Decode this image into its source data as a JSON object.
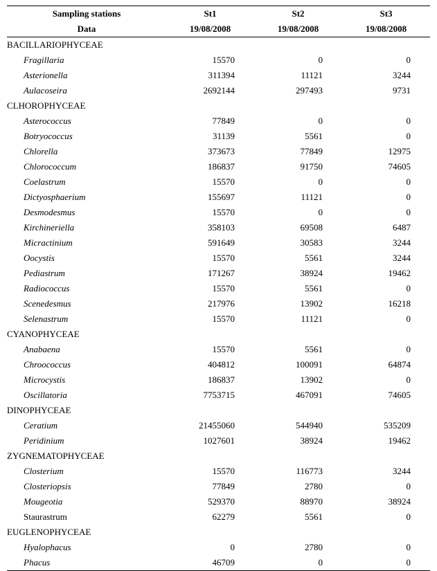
{
  "header": {
    "colStations": "Sampling stations",
    "stations": [
      "St1",
      "St2",
      "St3"
    ],
    "colData": "Data",
    "dates": [
      "19/08/2008",
      "19/08/2008",
      "19/08/2008"
    ]
  },
  "groups": [
    {
      "name": "BACILLARIOPHYCEAE",
      "rows": [
        {
          "name": "Fragillaria",
          "vals": [
            "15570",
            "0",
            "0"
          ]
        },
        {
          "name": "Asterionella",
          "vals": [
            "311394",
            "11121",
            "3244"
          ]
        },
        {
          "name": "Aulacoseira",
          "vals": [
            "2692144",
            "297493",
            "9731"
          ]
        }
      ]
    },
    {
      "name": "CLHOROPHYCEAE",
      "rows": [
        {
          "name": "Asterococcus",
          "vals": [
            "77849",
            "0",
            "0"
          ]
        },
        {
          "name": "Botryococcus",
          "vals": [
            "31139",
            "5561",
            "0"
          ]
        },
        {
          "name": "Chlorella",
          "vals": [
            "373673",
            "77849",
            "12975"
          ]
        },
        {
          "name": "Chlorococcum",
          "vals": [
            "186837",
            "91750",
            "74605"
          ]
        },
        {
          "name": "Coelastrum",
          "vals": [
            "15570",
            "0",
            "0"
          ]
        },
        {
          "name": "Dictyosphaerium",
          "vals": [
            "155697",
            "11121",
            "0"
          ]
        },
        {
          "name": "Desmodesmus",
          "vals": [
            "15570",
            "0",
            "0"
          ]
        },
        {
          "name": "Kirchineriella",
          "vals": [
            "358103",
            "69508",
            "6487"
          ]
        },
        {
          "name": "Micractinium",
          "vals": [
            "591649",
            "30583",
            "3244"
          ]
        },
        {
          "name": "Oocystis",
          "vals": [
            "15570",
            "5561",
            "3244"
          ]
        },
        {
          "name": "Pediastrum",
          "vals": [
            "171267",
            "38924",
            "19462"
          ]
        },
        {
          "name": "Radiococcus",
          "vals": [
            "15570",
            "5561",
            "0"
          ]
        },
        {
          "name": "Scenedesmus",
          "vals": [
            "217976",
            "13902",
            "16218"
          ]
        },
        {
          "name": "Selenastrum",
          "vals": [
            "15570",
            "11121",
            "0"
          ]
        }
      ]
    },
    {
      "name": "CYANOPHYCEAE",
      "rows": [
        {
          "name": "Anabaena",
          "vals": [
            "15570",
            "5561",
            "0"
          ]
        },
        {
          "name": "Chroococcus",
          "vals": [
            "404812",
            "100091",
            "64874"
          ]
        },
        {
          "name": "Microcystis",
          "vals": [
            "186837",
            "13902",
            "0"
          ]
        },
        {
          "name": "Oscillatoria",
          "vals": [
            "7753715",
            "467091",
            "74605"
          ]
        }
      ]
    },
    {
      "name": "DINOPHYCEAE",
      "rows": [
        {
          "name": "Ceratium",
          "vals": [
            "21455060",
            "544940",
            "535209"
          ]
        },
        {
          "name": "Peridinium",
          "vals": [
            "1027601",
            "38924",
            "19462"
          ]
        }
      ]
    },
    {
      "name": "ZYGNEMATOPHYCEAE",
      "rows": [
        {
          "name": "Closterium",
          "vals": [
            "15570",
            "116773",
            "3244"
          ]
        },
        {
          "name": "Closteriopsis",
          "vals": [
            "77849",
            "2780",
            "0"
          ]
        },
        {
          "name": "Mougeotia",
          "vals": [
            "529370",
            "88970",
            "38924"
          ]
        },
        {
          "name": "Staurastrum",
          "vals": [
            "62279",
            "5561",
            "0"
          ],
          "noitalic": true
        }
      ]
    },
    {
      "name": "EUGLENOPHYCEAE",
      "rows": [
        {
          "name": "Hyalophacus",
          "vals": [
            "0",
            "2780",
            "0"
          ]
        },
        {
          "name": "Phacus",
          "vals": [
            "46709",
            "0",
            "0"
          ]
        }
      ]
    }
  ]
}
